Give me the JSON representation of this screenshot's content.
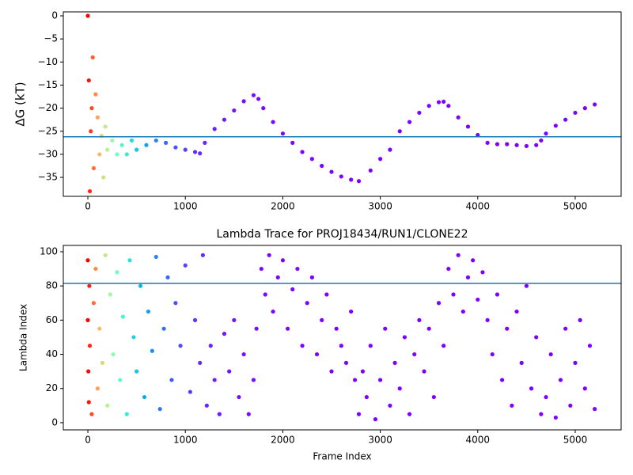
{
  "chart_data": [
    {
      "type": "scatter",
      "ylabel": "ΔG (kT)",
      "colormap": "rainbow",
      "hline": -26.2,
      "hline_color": "#1f77b4",
      "xlim": [
        -252,
        5471
      ],
      "ylim": [
        -39.1,
        0.86
      ],
      "xticks": [
        0,
        1000,
        2000,
        3000,
        4000,
        5000
      ],
      "yticks": [
        {
          "value": 0,
          "label": "0"
        },
        {
          "value": -5,
          "label": "−5"
        },
        {
          "value": -10,
          "label": "−10"
        },
        {
          "value": -15,
          "label": "−15"
        },
        {
          "value": -20,
          "label": "−20"
        },
        {
          "value": -25,
          "label": "−25"
        },
        {
          "value": -30,
          "label": "−30"
        },
        {
          "value": -35,
          "label": "−35"
        }
      ],
      "x": [
        0,
        10,
        20,
        30,
        40,
        50,
        60,
        80,
        100,
        120,
        140,
        160,
        180,
        200,
        250,
        300,
        350,
        400,
        450,
        500,
        600,
        700,
        800,
        900,
        1000,
        1100,
        1150,
        1200,
        1300,
        1400,
        1500,
        1600,
        1700,
        1750,
        1800,
        1900,
        2000,
        2100,
        2200,
        2300,
        2400,
        2500,
        2600,
        2700,
        2780,
        2900,
        3000,
        3100,
        3200,
        3300,
        3400,
        3500,
        3600,
        3650,
        3700,
        3800,
        3900,
        4000,
        4100,
        4200,
        4300,
        4400,
        4500,
        4600,
        4650,
        4700,
        4800,
        4900,
        5000,
        5100,
        5200
      ],
      "values": [
        0,
        -14,
        -38,
        -25,
        -20,
        -9,
        -33,
        -17,
        -22,
        -30,
        -26,
        -35,
        -24,
        -29,
        -27,
        -30,
        -28,
        -30,
        -27,
        -29,
        -28,
        -27,
        -27.5,
        -28.5,
        -29,
        -29.5,
        -29.8,
        -27.5,
        -24.5,
        -22.5,
        -20.5,
        -18.5,
        -17.2,
        -18,
        -20,
        -23,
        -25.5,
        -27.5,
        -29.5,
        -31,
        -32.5,
        -33.8,
        -34.8,
        -35.5,
        -35.8,
        -33.5,
        -31,
        -29,
        -25,
        -23,
        -21,
        -19.5,
        -18.7,
        -18.6,
        -19.5,
        -22,
        -24,
        -25.8,
        -27.5,
        -27.8,
        -27.8,
        -28,
        -28.2,
        -28,
        -27,
        -25.5,
        -23.8,
        -22.5,
        -21,
        -20,
        -19.2
      ]
    },
    {
      "type": "scatter",
      "title": "Lambda Trace for PROJ18434/RUN1/CLONE22",
      "xlabel": "Frame Index",
      "ylabel": "Lambda Index",
      "colormap": "rainbow",
      "hline": 81.5,
      "hline_color": "#1f77b4",
      "xlim": [
        -252,
        5471
      ],
      "ylim": [
        -4.2,
        103.7
      ],
      "xticks": [
        0,
        1000,
        2000,
        3000,
        4000,
        5000
      ],
      "yticks": [
        0,
        20,
        40,
        60,
        80,
        100
      ],
      "x": [
        0,
        0,
        5,
        10,
        15,
        20,
        40,
        60,
        80,
        100,
        120,
        150,
        180,
        200,
        230,
        260,
        300,
        330,
        360,
        400,
        430,
        470,
        500,
        540,
        580,
        620,
        660,
        700,
        740,
        780,
        820,
        860,
        900,
        950,
        1000,
        1050,
        1100,
        1150,
        1180,
        1220,
        1260,
        1300,
        1350,
        1400,
        1450,
        1500,
        1550,
        1600,
        1650,
        1700,
        1730,
        1780,
        1820,
        1860,
        1900,
        1950,
        2000,
        2050,
        2100,
        2150,
        2200,
        2250,
        2300,
        2350,
        2400,
        2450,
        2500,
        2550,
        2600,
        2650,
        2700,
        2740,
        2780,
        2820,
        2860,
        2900,
        2950,
        3000,
        3050,
        3100,
        3150,
        3200,
        3250,
        3300,
        3350,
        3400,
        3450,
        3500,
        3550,
        3600,
        3650,
        3700,
        3750,
        3800,
        3850,
        3900,
        3950,
        4000,
        4050,
        4100,
        4150,
        4200,
        4250,
        4300,
        4350,
        4400,
        4450,
        4500,
        4550,
        4600,
        4650,
        4700,
        4750,
        4800,
        4850,
        4900,
        4950,
        5000,
        5050,
        5100,
        5150,
        5200
      ],
      "values": [
        95,
        60,
        30,
        12,
        80,
        45,
        5,
        70,
        90,
        20,
        55,
        35,
        98,
        10,
        75,
        40,
        88,
        25,
        62,
        5,
        95,
        50,
        30,
        80,
        15,
        65,
        42,
        97,
        8,
        55,
        85,
        25,
        70,
        45,
        92,
        18,
        60,
        35,
        98,
        10,
        45,
        25,
        5,
        52,
        30,
        60,
        15,
        40,
        5,
        25,
        55,
        90,
        75,
        98,
        65,
        85,
        95,
        55,
        78,
        90,
        45,
        70,
        85,
        40,
        60,
        75,
        30,
        55,
        45,
        35,
        65,
        25,
        5,
        30,
        15,
        45,
        2,
        25,
        55,
        10,
        35,
        20,
        50,
        5,
        40,
        60,
        30,
        55,
        15,
        70,
        45,
        90,
        75,
        98,
        65,
        85,
        95,
        72,
        88,
        60,
        40,
        75,
        25,
        55,
        10,
        65,
        35,
        80,
        20,
        50,
        5,
        15,
        40,
        3,
        25,
        55,
        10,
        35,
        60,
        20,
        45,
        8
      ]
    }
  ]
}
